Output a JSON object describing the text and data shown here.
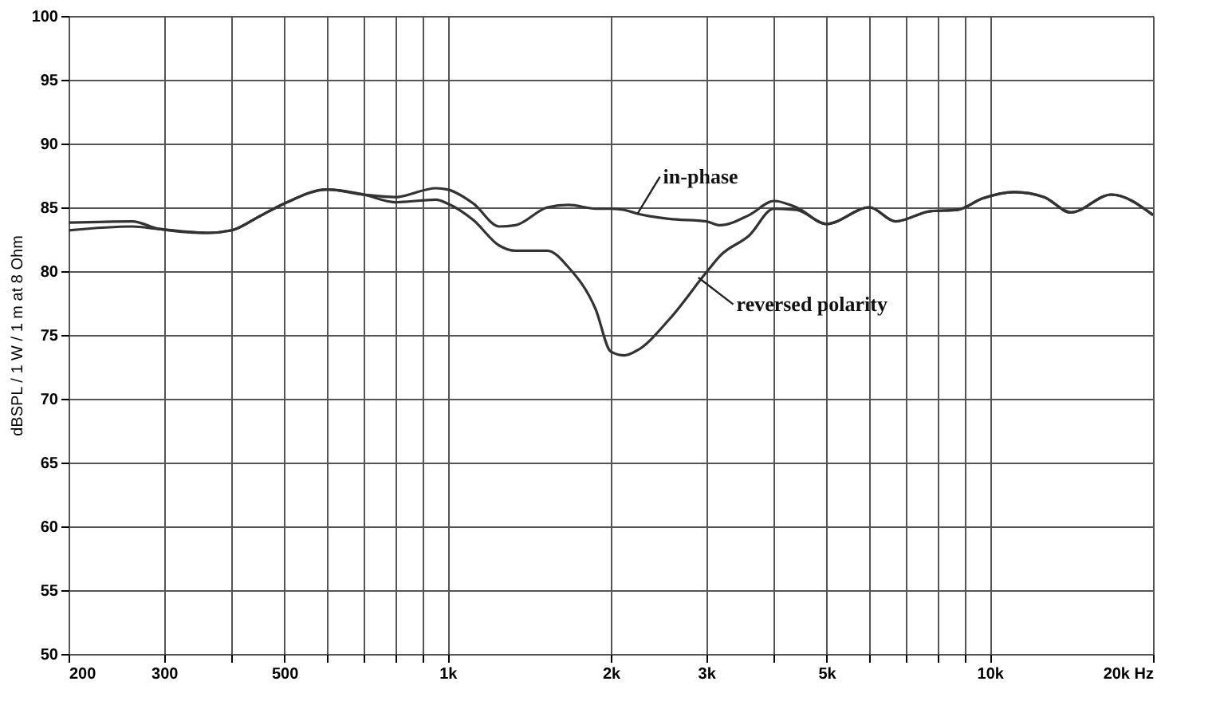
{
  "chart_data": {
    "type": "line",
    "ylabel": "dBSPL / 1 W / 1 m at 8 Ohm",
    "log": "x",
    "grid": true,
    "legend": false,
    "marker": "none",
    "line_style": "solid",
    "xlim": [
      200,
      20000
    ],
    "ylim": [
      50,
      100
    ],
    "xticks": [
      200,
      300,
      {
        "value": 400,
        "label": null
      },
      500,
      {
        "value": 600,
        "label": null
      },
      {
        "value": 700,
        "label": null
      },
      {
        "value": 800,
        "label": null
      },
      {
        "value": 900,
        "label": null
      },
      {
        "value": 1000,
        "label": "1k"
      },
      {
        "value": 2000,
        "label": "2k"
      },
      {
        "value": 3000,
        "label": "3k"
      },
      {
        "value": 4000,
        "label": null
      },
      {
        "value": 5000,
        "label": "5k"
      },
      {
        "value": 6000,
        "label": null
      },
      {
        "value": 7000,
        "label": null
      },
      {
        "value": 8000,
        "label": null
      },
      {
        "value": 9000,
        "label": null
      },
      {
        "value": 10000,
        "label": "10k"
      },
      {
        "value": 20000,
        "label": "20k Hz"
      }
    ],
    "yticks": [
      50,
      55,
      60,
      65,
      70,
      75,
      80,
      85,
      90,
      95,
      100
    ],
    "x": [
      200,
      262,
      294,
      361,
      400,
      450,
      500,
      600,
      700,
      800,
      952,
      1000,
      1116,
      1246,
      1334,
      1528,
      1671,
      1876,
      2000,
      2120,
      2240,
      2561,
      3000,
      3180,
      3600,
      4000,
      4400,
      5000,
      6000,
      6700,
      7770,
      8710,
      9700,
      11120,
      12600,
      14100,
      16760,
      20000
    ],
    "series": [
      {
        "color": "#333333",
        "values": [
          83.8,
          83.9,
          83.3,
          83.0,
          83.2,
          84.3,
          85.3,
          86.4,
          86.0,
          85.8,
          86.5,
          86.4,
          85.3,
          83.5,
          83.6,
          85.0,
          85.2,
          84.9,
          84.9,
          84.8,
          84.5,
          84.1,
          83.9,
          83.6,
          84.4,
          85.5,
          85.0,
          83.7,
          85.0,
          83.9,
          84.7,
          84.8,
          85.7,
          86.2,
          85.8,
          84.6,
          86.0,
          84.4
        ]
      },
      {
        "color": "#333333",
        "values": [
          83.2,
          83.5,
          83.3,
          83.0,
          83.2,
          84.3,
          85.3,
          86.4,
          86.0,
          85.4,
          85.6,
          85.3,
          84.0,
          82.0,
          81.6,
          81.6,
          80.3,
          77.0,
          73.7,
          73.4,
          73.8,
          76.2,
          79.9,
          81.2,
          82.8,
          84.9,
          84.8,
          83.7,
          85.0,
          83.9,
          84.7,
          84.8,
          85.7,
          86.2,
          85.8,
          84.6,
          86.0,
          84.4
        ]
      }
    ],
    "annotations": [
      {
        "text": "in-phase",
        "x": 2240,
        "y": 84.5
      },
      {
        "text": "reversed polarity",
        "x": 2900,
        "y": 79.5
      }
    ]
  }
}
